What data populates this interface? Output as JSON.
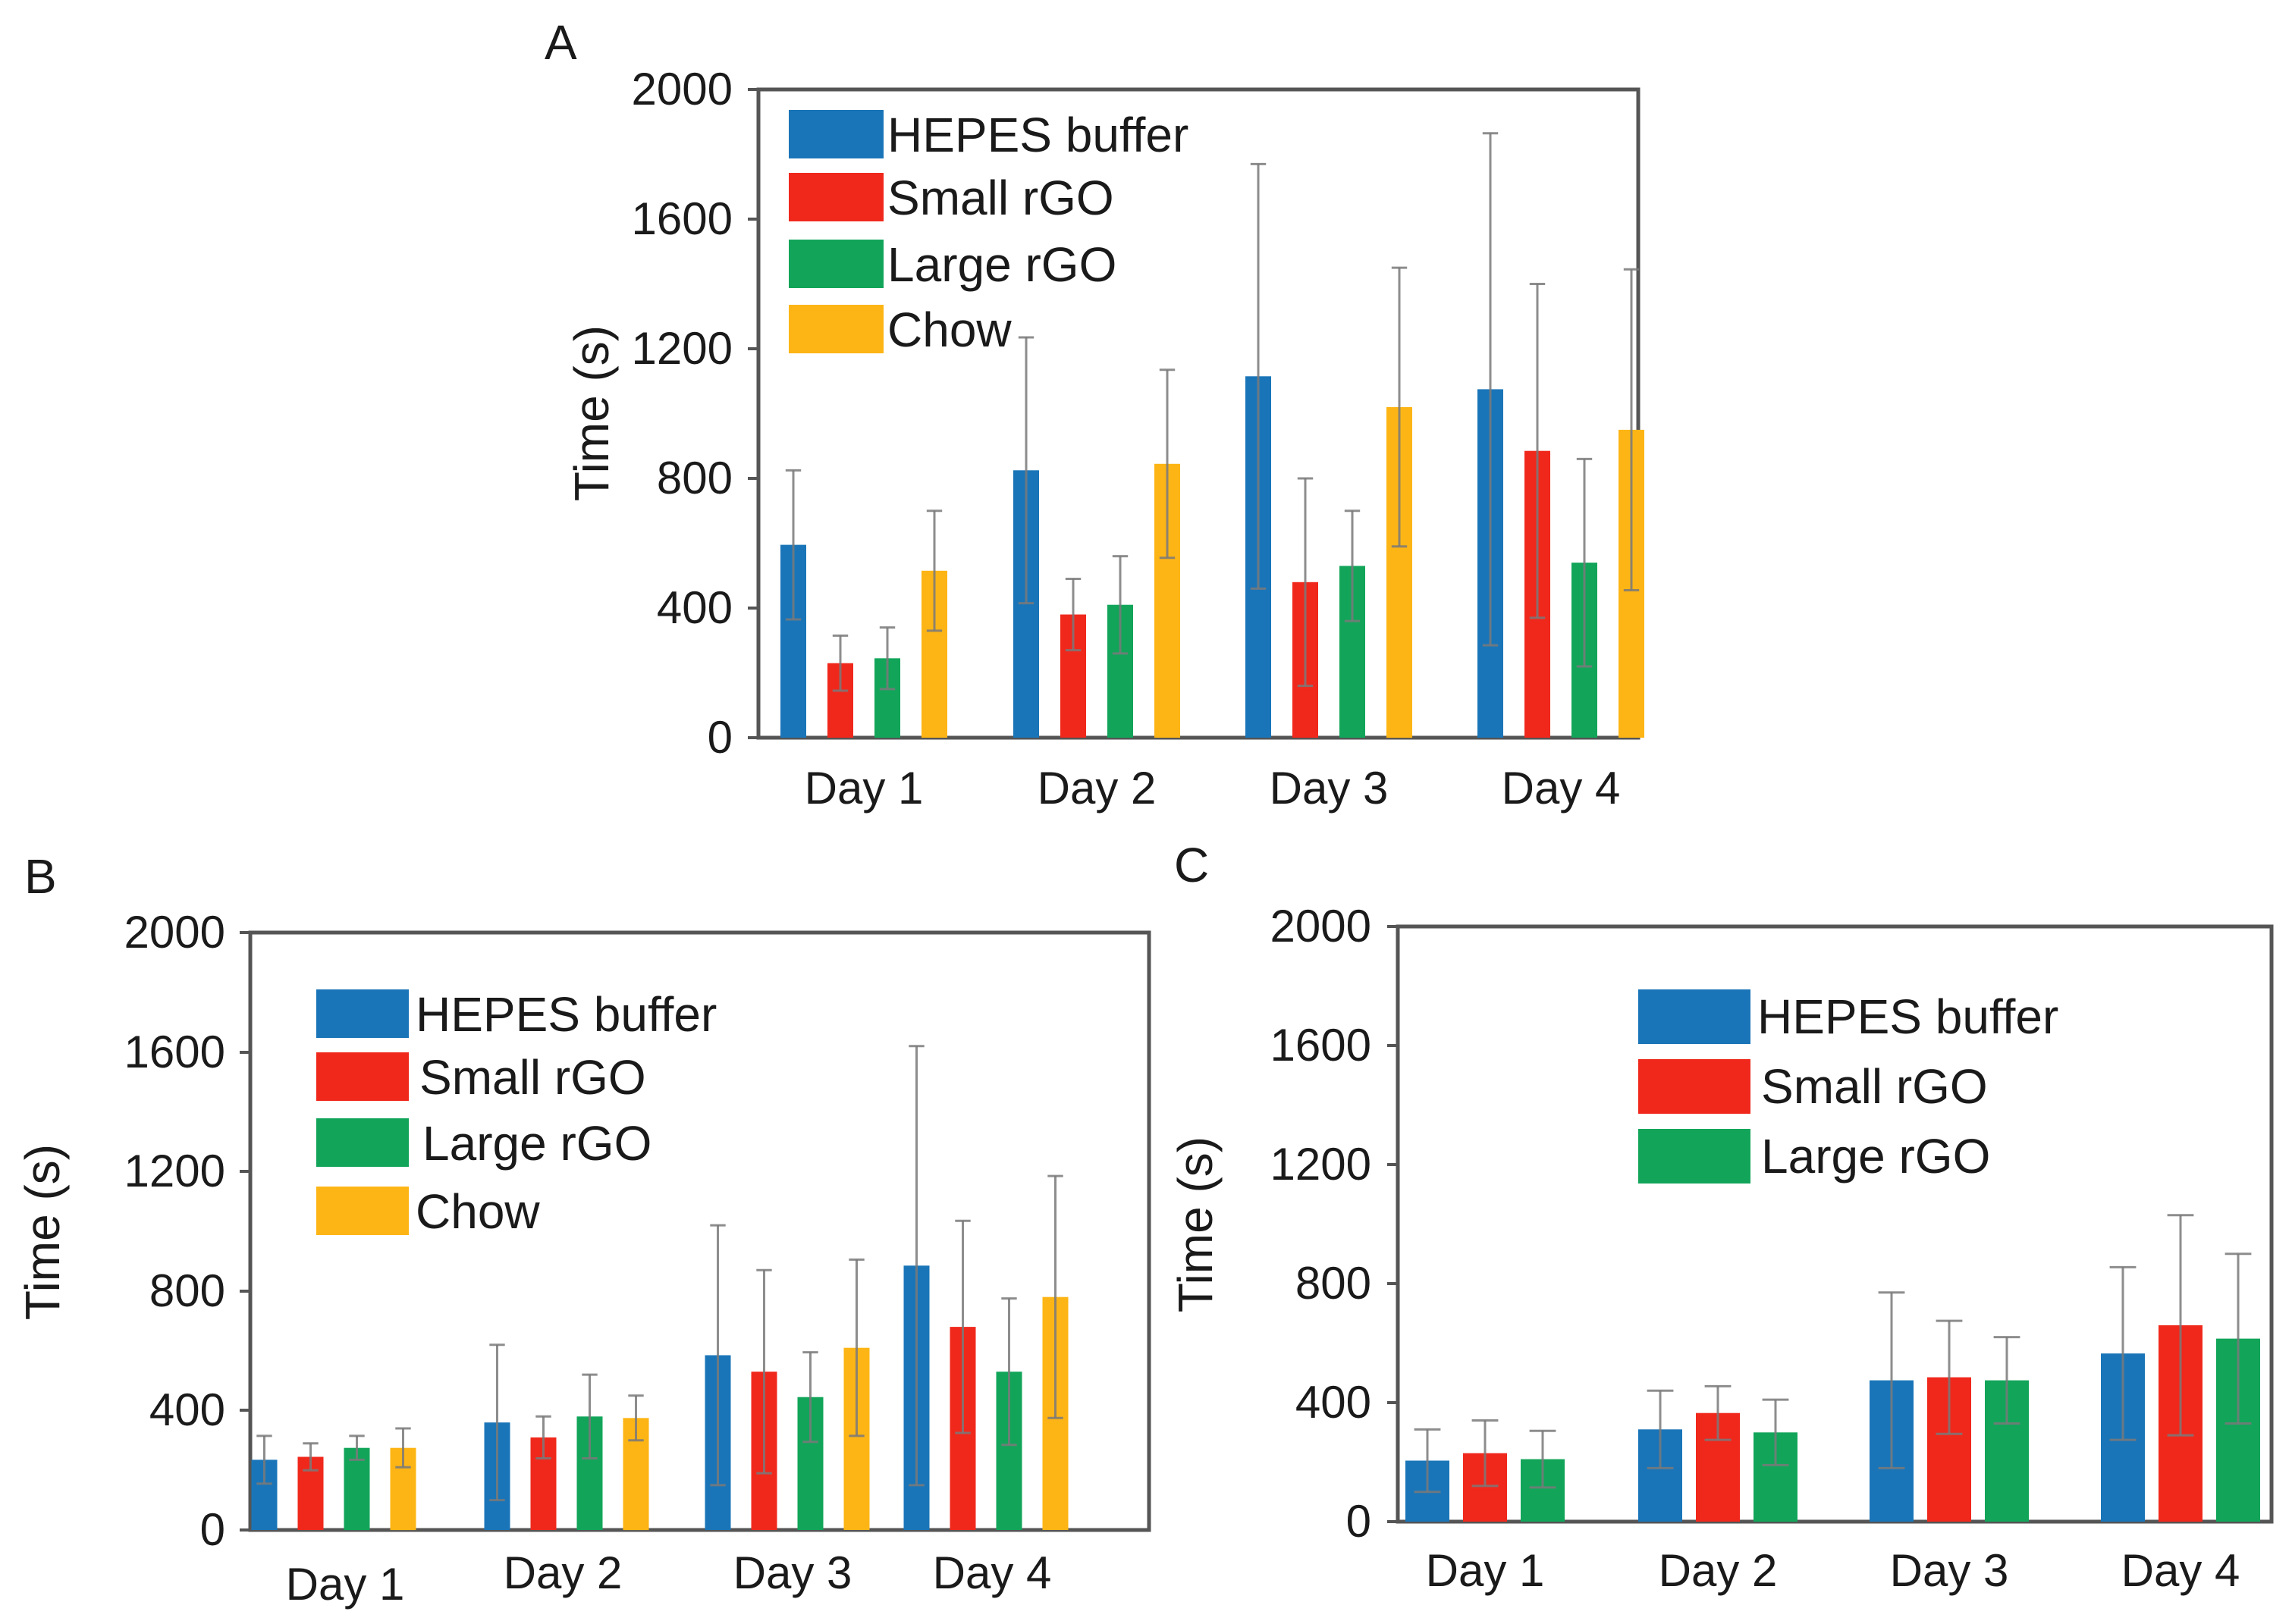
{
  "chart_data": [
    {
      "panel": "A",
      "type": "bar",
      "ylabel": "Time (s)",
      "xlabel": "",
      "ylim": [
        0,
        2000
      ],
      "yticks": [
        0,
        400,
        800,
        1200,
        1600,
        2000
      ],
      "categories": [
        "Day 1",
        "Day 2",
        "Day 3",
        "Day 4"
      ],
      "legend_position": "top-left",
      "series": [
        {
          "name": "HEPES buffer",
          "color": "#1a75b8",
          "values": [
            595,
            825,
            1115,
            1075
          ],
          "errors": [
            230,
            410,
            655,
            790
          ]
        },
        {
          "name": "Small rGO",
          "color": "#f0281c",
          "values": [
            230,
            380,
            480,
            885
          ],
          "errors": [
            85,
            110,
            320,
            515
          ]
        },
        {
          "name": "Large rGO",
          "color": "#12a55a",
          "values": [
            245,
            410,
            530,
            540
          ],
          "errors": [
            95,
            150,
            170,
            320
          ]
        },
        {
          "name": "Chow",
          "color": "#fdb515",
          "values": [
            515,
            845,
            1020,
            950
          ],
          "errors": [
            185,
            290,
            430,
            495
          ]
        }
      ]
    },
    {
      "panel": "B",
      "type": "bar",
      "ylabel": "Time (s)",
      "xlabel": "",
      "ylim": [
        0,
        2000
      ],
      "yticks": [
        0,
        400,
        800,
        1200,
        1600,
        2000
      ],
      "categories": [
        "Day 1",
        "Day 2",
        "Day 3",
        "Day 4"
      ],
      "legend_position": "top-left",
      "series": [
        {
          "name": "HEPES buffer",
          "color": "#1a75b8",
          "values": [
            235,
            360,
            585,
            885
          ],
          "errors": [
            80,
            260,
            435,
            735
          ]
        },
        {
          "name": "Small rGO",
          "color": "#f0281c",
          "values": [
            245,
            310,
            530,
            680
          ],
          "errors": [
            45,
            70,
            340,
            355
          ]
        },
        {
          "name": "Large rGO",
          "color": "#12a55a",
          "values": [
            275,
            380,
            445,
            530
          ],
          "errors": [
            40,
            140,
            150,
            245
          ]
        },
        {
          "name": "Chow",
          "color": "#fdb515",
          "values": [
            275,
            375,
            610,
            780
          ],
          "errors": [
            65,
            75,
            295,
            405
          ]
        }
      ]
    },
    {
      "panel": "C",
      "type": "bar",
      "ylabel": "Time (s)",
      "xlabel": "",
      "ylim": [
        0,
        2000
      ],
      "yticks": [
        0,
        400,
        800,
        1200,
        1600,
        2000
      ],
      "categories": [
        "Day 1",
        "Day 2",
        "Day 3",
        "Day 4"
      ],
      "legend_position": "top-center",
      "series": [
        {
          "name": "HEPES buffer",
          "color": "#1a75b8",
          "values": [
            205,
            310,
            475,
            565
          ],
          "errors": [
            105,
            130,
            295,
            290
          ]
        },
        {
          "name": "Small rGO",
          "color": "#f0281c",
          "values": [
            230,
            365,
            485,
            660
          ],
          "errors": [
            110,
            90,
            190,
            370
          ]
        },
        {
          "name": "Large rGO",
          "color": "#12a55a",
          "values": [
            210,
            300,
            475,
            615
          ],
          "errors": [
            95,
            110,
            145,
            285
          ]
        }
      ]
    }
  ]
}
